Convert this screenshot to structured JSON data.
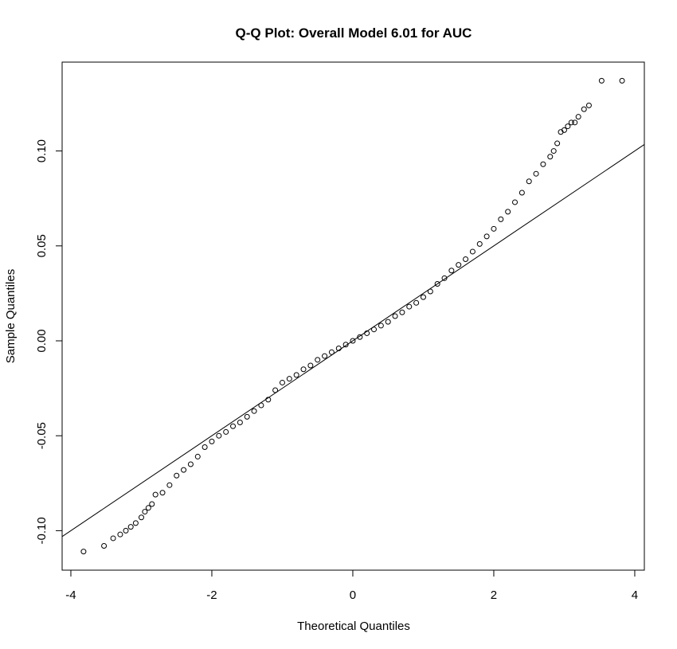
{
  "chart_data": {
    "type": "scatter",
    "title": "Q-Q Plot: Overall Model 6.01 for AUC",
    "x_label": "Theoretical Quantiles",
    "y_label": "Sample Quantiles",
    "x": [
      -3.82,
      -3.53,
      -3.4,
      -3.3,
      -3.22,
      -3.15,
      -3.08,
      -3.0,
      -2.95,
      -2.9,
      -2.85,
      -2.8,
      -2.7,
      -2.6,
      -2.5,
      -2.4,
      -2.3,
      -2.2,
      -2.1,
      -2.0,
      -1.9,
      -1.8,
      -1.7,
      -1.6,
      -1.5,
      -1.4,
      -1.3,
      -1.2,
      -1.1,
      -1.0,
      -0.9,
      -0.8,
      -0.7,
      -0.6,
      -0.5,
      -0.4,
      -0.3,
      -0.2,
      -0.1,
      0,
      0.1,
      0.2,
      0.3,
      0.4,
      0.5,
      0.6,
      0.7,
      0.8,
      0.9,
      1.0,
      1.1,
      1.2,
      1.3,
      1.4,
      1.5,
      1.6,
      1.7,
      1.8,
      1.9,
      2.0,
      2.1,
      2.2,
      2.3,
      2.4,
      2.5,
      2.6,
      2.7,
      2.8,
      2.85,
      2.9,
      2.95,
      3.0,
      3.05,
      3.1,
      3.15,
      3.2,
      3.28,
      3.35,
      3.53,
      3.82
    ],
    "values": [
      -0.111,
      -0.108,
      -0.104,
      -0.102,
      -0.1,
      -0.098,
      -0.096,
      -0.093,
      -0.09,
      -0.088,
      -0.086,
      -0.081,
      -0.08,
      -0.076,
      -0.071,
      -0.068,
      -0.065,
      -0.061,
      -0.056,
      -0.053,
      -0.05,
      -0.048,
      -0.045,
      -0.043,
      -0.04,
      -0.037,
      -0.034,
      -0.031,
      -0.026,
      -0.022,
      -0.02,
      -0.018,
      -0.015,
      -0.013,
      -0.01,
      -0.008,
      -0.006,
      -0.004,
      -0.002,
      0.0,
      0.002,
      0.004,
      0.006,
      0.008,
      0.01,
      0.013,
      0.015,
      0.018,
      0.02,
      0.023,
      0.026,
      0.03,
      0.033,
      0.037,
      0.04,
      0.043,
      0.047,
      0.051,
      0.055,
      0.059,
      0.064,
      0.068,
      0.073,
      0.078,
      0.084,
      0.088,
      0.093,
      0.097,
      0.1,
      0.104,
      0.11,
      0.111,
      0.113,
      0.115,
      0.115,
      0.118,
      0.122,
      0.124,
      0.137,
      0.137
    ],
    "reference_line": {
      "intercept": 0,
      "slope": 0.025
    },
    "xlim": [
      -4.124,
      4.136
    ],
    "ylim": [
      -0.1208,
      0.1468
    ],
    "xticks": [
      -4,
      -2,
      0,
      2,
      4
    ],
    "yticks": [
      {
        "value": -0.1,
        "label": "-0.10"
      },
      {
        "value": -0.05,
        "label": "-0.05"
      },
      {
        "value": 0,
        "label": "0.00"
      },
      {
        "value": 0.05,
        "label": "0.05"
      },
      {
        "value": 0.1,
        "label": "0.10"
      }
    ],
    "color": "#000000"
  }
}
